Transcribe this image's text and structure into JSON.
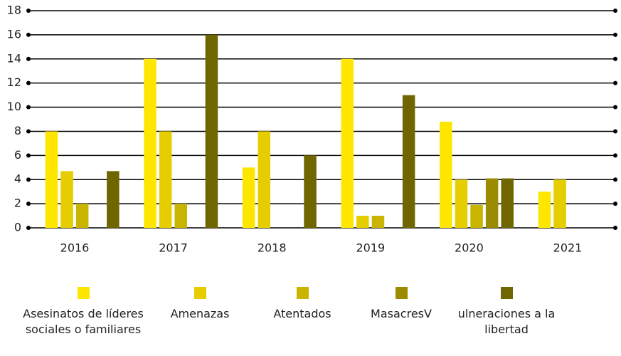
{
  "chart_data": {
    "type": "bar",
    "categories": [
      "2016",
      "2017",
      "2018",
      "2019",
      "2020",
      "2021"
    ],
    "series": [
      {
        "name": "Asesinatos de líderes sociales o familiares",
        "color": "#ffe600",
        "values": [
          8,
          14,
          5,
          14,
          8.8,
          3
        ]
      },
      {
        "name": "Amenazas",
        "color": "#e6cd00",
        "values": [
          4.7,
          8,
          8,
          1,
          4,
          4
        ]
      },
      {
        "name": "Atentados",
        "color": "#c9b500",
        "values": [
          2,
          2,
          0,
          1,
          1.9,
          0
        ]
      },
      {
        "name": "MasacresV",
        "color": "#9b8b00",
        "values": [
          0,
          0,
          0,
          0,
          4.1,
          0
        ]
      },
      {
        "name": "ulneraciones a la libertad",
        "color": "#706600",
        "values": [
          4.7,
          16,
          6,
          11,
          4.1,
          0
        ]
      }
    ],
    "ylim": [
      0,
      18
    ],
    "yticks": [
      0,
      2,
      4,
      6,
      8,
      10,
      12,
      14,
      16,
      18
    ],
    "grid": true
  }
}
